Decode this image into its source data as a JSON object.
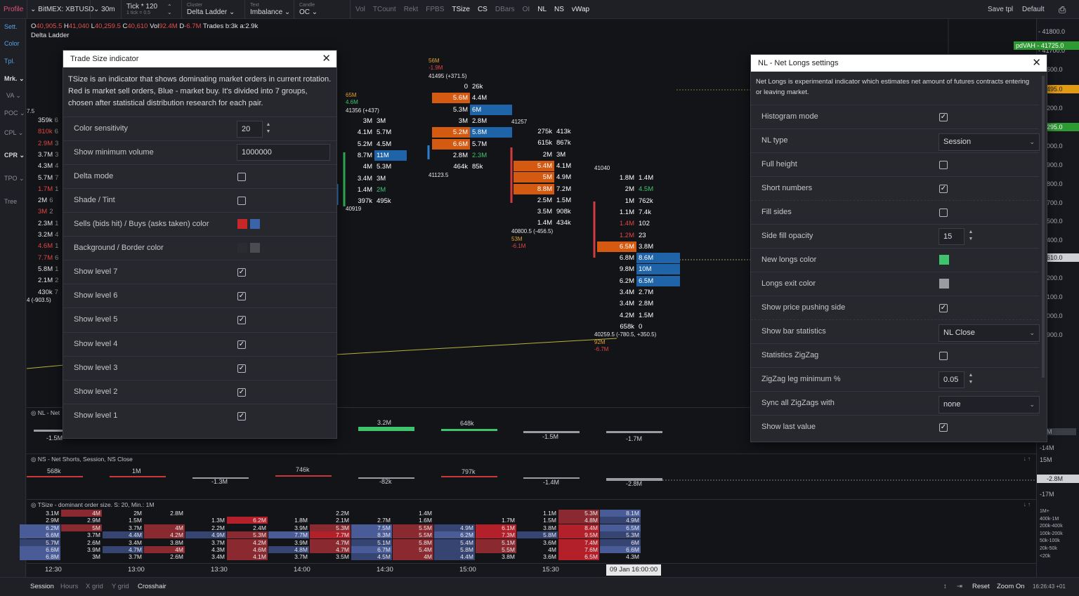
{
  "topbar": {
    "profile": "Profile",
    "symbol": "BitMEX: XBTUSD",
    "timeframe": "30m",
    "tick": "Tick * 120",
    "tick_sub": "1 tick = 0.5",
    "cluster_label": "Cluster",
    "cluster": "Delta Ladder",
    "text_label": "Text",
    "text": "Imbalance",
    "candle_label": "Candle",
    "candle": "OC",
    "indicators": [
      "Vol",
      "TCount",
      "Rekt",
      "FPBS",
      "TSize",
      "CS",
      "DBars",
      "OI",
      "NL",
      "NS",
      "vWap"
    ],
    "save_tpl": "Save tpl",
    "default": "Default"
  },
  "leftbar": [
    "Sett.",
    "Color",
    "Tpl.",
    "Mrk.",
    "VA",
    "POC",
    "CPL",
    "CPR",
    "TPO",
    "Tree"
  ],
  "ohlc": {
    "o_label": "O",
    "o": "40,905.5",
    "h_label": "H",
    "h": "41,040",
    "l_label": "L",
    "l": "40,259.5",
    "c_label": "C",
    "c": "40,610",
    "vol_label": "Vol",
    "vol": "92.4M",
    "d_label": "D",
    "d": "-6.7M",
    "trades": "Trades b:3k a:2.9k"
  },
  "chart_title": "Delta Ladder",
  "left_values": [
    "359k",
    "810k",
    "2.9M",
    "3.7M",
    "4.3M",
    "5.7M",
    "1.7M",
    "2M",
    "3M",
    "2.3M",
    "3.2M",
    "4.6M",
    "7.7M",
    "5.8M",
    "2.1M",
    "430k"
  ],
  "left_frag": [
    "6",
    "6",
    "3",
    "3",
    "4",
    "7",
    "1",
    "6",
    "2",
    "1",
    "4",
    "1",
    "6",
    "1",
    "2",
    "7"
  ],
  "left_mark": "7.5",
  "left_extra": "4 (-903.5)",
  "price_scale": [
    "41800.0",
    "41700.0",
    "600.0",
    "400.0",
    "200.0",
    "100.0",
    "000.0",
    "900.0",
    "800.0",
    "700.0",
    "500.0",
    "400.0",
    "300.0",
    "200.0",
    "100.0",
    "000.0",
    "900.0",
    "M"
  ],
  "pdvah": {
    "label": "pdVAH",
    "value": "41725.0"
  },
  "price_boxes": [
    {
      "t": "495.0",
      "bg": "#e29a12"
    },
    {
      "t": "295.0",
      "bg": "#2e9a32"
    },
    {
      "t": "610.0",
      "bg": "#cfd1d6"
    }
  ],
  "candles": {
    "c1": {
      "hi": "65M",
      "d": "4.6M",
      "p": "41356 (+437)",
      "lo": "40919",
      "rows": [
        [
          "3M",
          "3M"
        ],
        [
          "4.1M",
          "5.7M"
        ],
        [
          "5.2M",
          "4.5M"
        ],
        [
          "8.7M",
          "11M"
        ],
        [
          "4M",
          "5.3M"
        ],
        [
          "3.4M",
          "3M"
        ],
        [
          "1.4M",
          "2M"
        ],
        [
          "397k",
          "495k"
        ]
      ]
    },
    "c2": {
      "hi": "56M",
      "d": "-1.9M",
      "p": "41495 (+371.5)",
      "lo": "41123.5",
      "rows": [
        [
          "0",
          "26k"
        ],
        [
          "5.6M",
          "4.4M"
        ],
        [
          "5.3M",
          "6M"
        ],
        [
          "3M",
          "2.8M"
        ],
        [
          "5.2M",
          "5.8M"
        ],
        [
          "6.6M",
          "5.7M"
        ],
        [
          "2.8M",
          "2.3M"
        ],
        [
          "464k",
          "85k"
        ]
      ]
    },
    "c3": {
      "hi": "41257",
      "p": "40800.5 (-456.5)",
      "v": "53M",
      "d": "-6.1M",
      "rows": [
        [
          "275k",
          "413k"
        ],
        [
          "615k",
          "867k"
        ],
        [
          "2M",
          "3M"
        ],
        [
          "5.4M",
          "4.1M"
        ],
        [
          "5M",
          "4.9M"
        ],
        [
          "8.8M",
          "7.2M"
        ],
        [
          "2.5M",
          "1.5M"
        ],
        [
          "3.5M",
          "908k"
        ],
        [
          "1.4M",
          "434k"
        ]
      ]
    },
    "c4": {
      "hi": "41040",
      "p": "40259.5 (-780.5, +350.5)",
      "v": "92M",
      "d": "-6.7M",
      "rows": [
        [
          "1.8M",
          "1.4M"
        ],
        [
          "2M",
          "4.5M"
        ],
        [
          "1M",
          "762k"
        ],
        [
          "1.1M",
          "7.4k"
        ],
        [
          "1.4M",
          "102"
        ],
        [
          "1.2M",
          "23"
        ],
        [
          "6.5M",
          "3.8M"
        ],
        [
          "6.8M",
          "8.6M"
        ],
        [
          "9.8M",
          "10M"
        ],
        [
          "6.2M",
          "6.5M"
        ],
        [
          "3.4M",
          "2.7M"
        ],
        [
          "3.4M",
          "2.8M"
        ],
        [
          "4.2M",
          "1.5M"
        ],
        [
          "658k",
          "0"
        ]
      ]
    }
  },
  "nl_panel": {
    "title": "NL - Net",
    "values": [
      "-1.5M",
      "3.2M",
      "648k",
      "-1.5M",
      "-1.7M"
    ]
  },
  "ns_panel": {
    "title": "NS - Net Shorts, Session, NS Close",
    "values": [
      "568k",
      "1M",
      "-1.3M",
      "746k",
      "-82k",
      "797k",
      "-1.4M",
      "-2.8M"
    ],
    "scale": [
      "-14M",
      "15M",
      "-2.8M",
      "-17M"
    ]
  },
  "tsize_panel": {
    "title": "TSize - dominant order size. S: 20, Min.: 1M",
    "legend": [
      "1M+",
      "400k-1M",
      "200k-400k",
      "100k-200k",
      "50k-100k",
      "20k-50k",
      "<20k"
    ],
    "cols": [
      [
        "3.1M",
        "2.9M",
        "6.2M",
        "",
        "6.6M",
        "5.7M",
        "6.6M",
        "6.8M"
      ],
      [
        "4M",
        "2.9M",
        "5M",
        "",
        "3.7M",
        "2.6M",
        "3.9M",
        "3M"
      ],
      [
        "2M",
        "1.5M",
        "3.7M",
        "",
        "4.4M",
        "3.4M",
        "4.7M",
        "3.7M"
      ],
      [
        "2.8M",
        "",
        "4M",
        "",
        "4.2M",
        "3.8M",
        "4M",
        "2.6M"
      ],
      [
        "",
        "1.3M",
        "2.2M",
        "",
        "4.9M",
        "3.7M",
        "4.3M",
        "3.4M"
      ],
      [
        "",
        "6.2M",
        "2.4M",
        "",
        "5.3M",
        "4.2M",
        "4.6M",
        "4.1M"
      ],
      [
        "",
        "1.8M",
        "3.9M",
        "",
        "7.7M",
        "3.9M",
        "4.8M",
        "3.7M"
      ],
      [
        "2.2M",
        "2.1M",
        "5.3M",
        "",
        "7.7M",
        "4.7M",
        "4.7M",
        "3.5M"
      ],
      [
        "",
        "2.7M",
        "7.5M",
        "",
        "8.3M",
        "5.1M",
        "6.7M",
        "4.5M"
      ],
      [
        "1.4M",
        "1.6M",
        "5.5M",
        "",
        "5.5M",
        "5.8M",
        "5.4M",
        "4M"
      ],
      [
        "",
        "",
        "4.9M",
        "",
        "6.2M",
        "5.4M",
        "5.8M",
        "4.4M"
      ],
      [
        "",
        "1.7M",
        "6.1M",
        "",
        "7.3M",
        "5.1M",
        "5.5M",
        "3.8M"
      ],
      [
        "1.1M",
        "1.5M",
        "3.8M",
        "",
        "5.8M",
        "3.6M",
        "4M",
        "3.6M"
      ],
      [
        "5.3M",
        "4.8M",
        "8.4M",
        "",
        "9.5M",
        "7.4M",
        "7.6M",
        "6.5M"
      ],
      [
        "8.1M",
        "4.9M",
        "6.5M",
        "",
        "5.3M",
        "6M",
        "6.6M",
        "4.3M"
      ]
    ]
  },
  "time_axis": [
    "12:30",
    "13:00",
    "13:30",
    "14:00",
    "14:30",
    "15:00",
    "15:30"
  ],
  "time_cursor": "09 Jan 16:00:00",
  "bottombar": {
    "items": [
      "Session",
      "Hours",
      "X grid",
      "Y grid",
      "Crosshair"
    ],
    "reset": "Reset",
    "zoom": "Zoom On",
    "clock": "16:26:43 +01"
  },
  "tsize_dialog": {
    "title": "Trade Size indicator",
    "desc": "TSize is an indicator that shows dominating market orders in current rotation. Red is market sell orders, Blue - market buy. It's divided into 7 groups, chosen after statistical distribution research for each pair.",
    "color_sensitivity": {
      "label": "Color sensitivity",
      "value": "20"
    },
    "min_volume": {
      "label": "Show minimum volume",
      "value": "1000000"
    },
    "delta_mode": {
      "label": "Delta mode",
      "checked": false
    },
    "shade_tint": {
      "label": "Shade / Tint",
      "checked": false
    },
    "sells_buys": {
      "label": "Sells (bids hit) / Buys (asks taken) color",
      "sell": "#c8272a",
      "buy": "#3b63a8"
    },
    "bg_border": {
      "label": "Background / Border color",
      "bg": "#2a2c31",
      "border": "#4a4c52"
    },
    "levels": [
      {
        "label": "Show level 7"
      },
      {
        "label": "Show level 6"
      },
      {
        "label": "Show level 5"
      },
      {
        "label": "Show level 4"
      },
      {
        "label": "Show level 3"
      },
      {
        "label": "Show level 2"
      },
      {
        "label": "Show level 1"
      }
    ]
  },
  "nl_dialog": {
    "title": "NL - Net Longs settings",
    "desc": "Net Longs is experimental indicator which estimates net amount of futures contracts entering or leaving market.",
    "histogram_mode": {
      "label": "Histogram mode",
      "checked": true
    },
    "nl_type": {
      "label": "NL type",
      "value": "Session"
    },
    "full_height": {
      "label": "Full height",
      "checked": false
    },
    "short_numbers": {
      "label": "Short numbers",
      "checked": true
    },
    "fill_sides": {
      "label": "Fill sides",
      "checked": false
    },
    "side_fill_opacity": {
      "label": "Side fill opacity",
      "value": "15"
    },
    "new_longs_color": {
      "label": "New longs color",
      "color": "#3ec46d"
    },
    "longs_exit_color": {
      "label": "Longs exit color",
      "color": "#9a9ca2"
    },
    "price_pushing": {
      "label": "Show price pushing side",
      "checked": true
    },
    "bar_stats": {
      "label": "Show bar statistics",
      "value": "NL Close"
    },
    "stats_zigzag": {
      "label": "Statistics ZigZag",
      "checked": false
    },
    "zigzag_leg": {
      "label": "ZigZag leg minimum %",
      "value": "0.05"
    },
    "sync_zigzag": {
      "label": "Sync all ZigZags with",
      "value": "none"
    },
    "show_last": {
      "label": "Show last value",
      "checked": true
    }
  },
  "check_glyph": "✓",
  "close_glyph": "✕"
}
